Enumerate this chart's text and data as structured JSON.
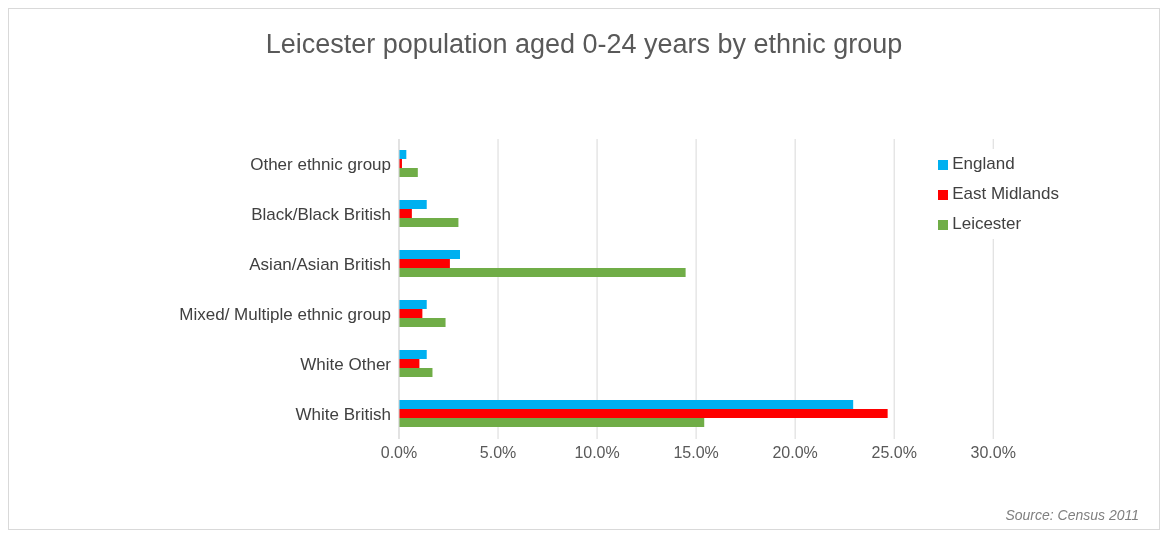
{
  "chart_data": {
    "type": "bar",
    "orientation": "horizontal",
    "title": "Leicester population aged 0-24 years by ethnic group",
    "categories": [
      "Other ethnic group",
      "Black/Black British",
      "Asian/Asian British",
      "Mixed/ Multiple ethnic group",
      "White Other",
      "White British"
    ],
    "series": [
      {
        "name": "England",
        "color": "#00b0f0",
        "values": [
          0.37,
          1.4,
          3.08,
          1.4,
          1.4,
          22.93
        ]
      },
      {
        "name": "East Midlands",
        "color": "#ff0000",
        "values": [
          0.15,
          0.65,
          2.57,
          1.18,
          1.03,
          24.67
        ]
      },
      {
        "name": "Leicester",
        "color": "#70ad47",
        "values": [
          0.95,
          3.0,
          14.47,
          2.35,
          1.69,
          15.41
        ]
      }
    ],
    "xlim": [
      0,
      30
    ],
    "xticks": [
      {
        "value": 0,
        "label": "0.0%"
      },
      {
        "value": 5,
        "label": "5.0%"
      },
      {
        "value": 10,
        "label": "10.0%"
      },
      {
        "value": 15,
        "label": "15.0%"
      },
      {
        "value": 20,
        "label": "20.0%"
      },
      {
        "value": 25,
        "label": "25.0%"
      },
      {
        "value": 30,
        "label": "30.0%"
      }
    ],
    "grid": "x",
    "legend": "top right",
    "annotations": [
      "Source: Census 2011"
    ]
  }
}
